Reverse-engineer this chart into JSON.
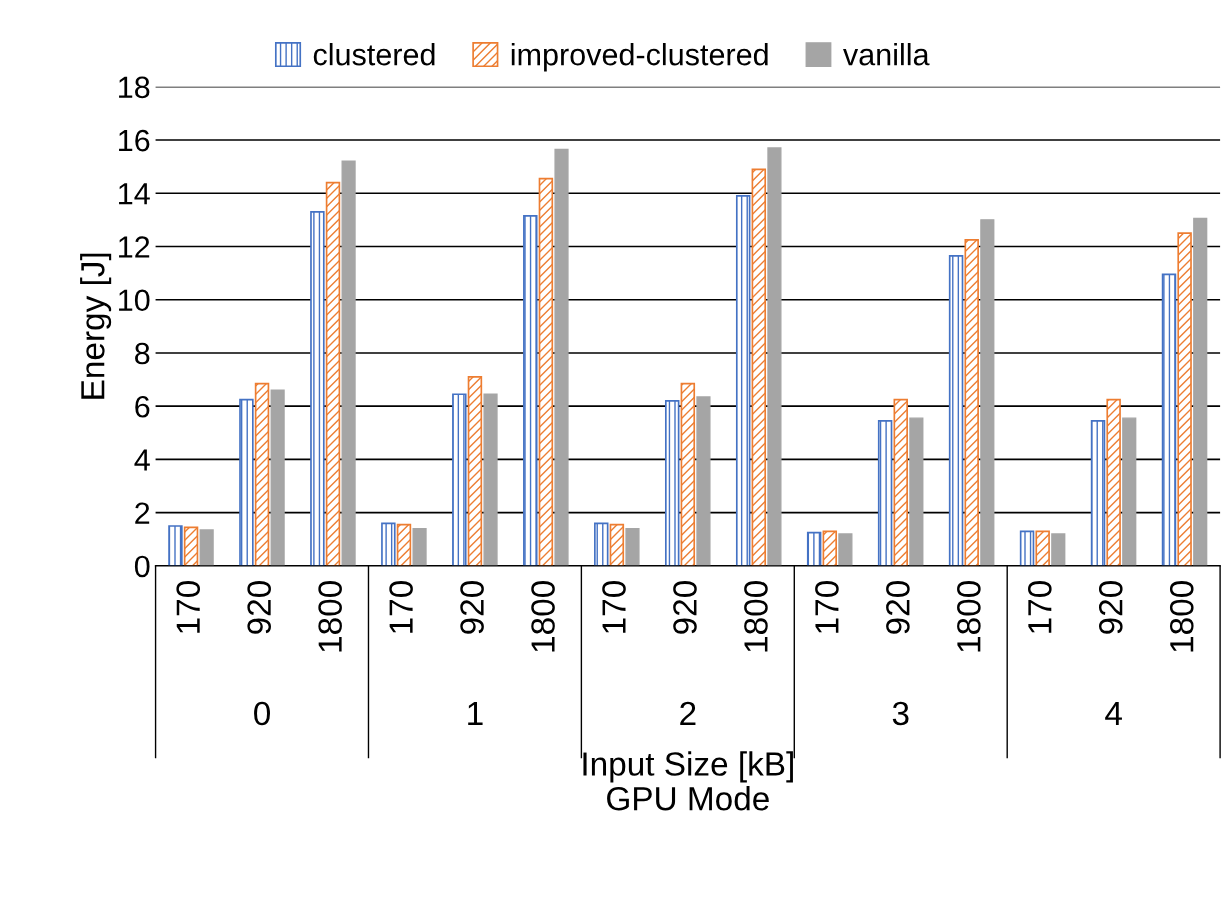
{
  "chart_data": {
    "type": "bar",
    "xlabel": "Input Size [kB]\nGPU Mode",
    "ylabel": "Energy [J]",
    "categories": [
      "170",
      "920",
      "1800",
      "170",
      "920",
      "1800",
      "170",
      "920",
      "1800",
      "170",
      "920",
      "1800",
      "170",
      "920",
      "1800"
    ],
    "series": [
      {
        "name": "clustered",
        "color": "#4472c4",
        "values": [
          1.5,
          6.25,
          13.3,
          1.6,
          6.45,
          13.15,
          1.6,
          6.2,
          13.9,
          1.25,
          5.45,
          11.65,
          1.3,
          5.45,
          10.95
        ]
      },
      {
        "name": "improved-clustered",
        "color": "#ed7d31",
        "values": [
          1.45,
          6.85,
          14.4,
          1.55,
          7.1,
          14.55,
          1.55,
          6.85,
          14.9,
          1.3,
          6.25,
          12.25,
          1.3,
          6.25,
          12.5
        ]
      },
      {
        "name": "vanilla",
        "color": "#a5a5a5",
        "values": [
          1.35,
          6.6,
          15.2,
          1.4,
          6.45,
          15.65,
          1.4,
          6.35,
          15.7,
          1.2,
          5.55,
          13.0,
          1.2,
          5.55,
          13.05
        ]
      }
    ],
    "annotations": [
      "0",
      "1",
      "2",
      "3",
      "4"
    ],
    "ylim": [
      0,
      18
    ],
    "yticks": [
      0,
      2,
      4,
      6,
      8,
      10,
      12,
      14,
      16,
      18
    ],
    "grid": "y",
    "legend": "top"
  }
}
